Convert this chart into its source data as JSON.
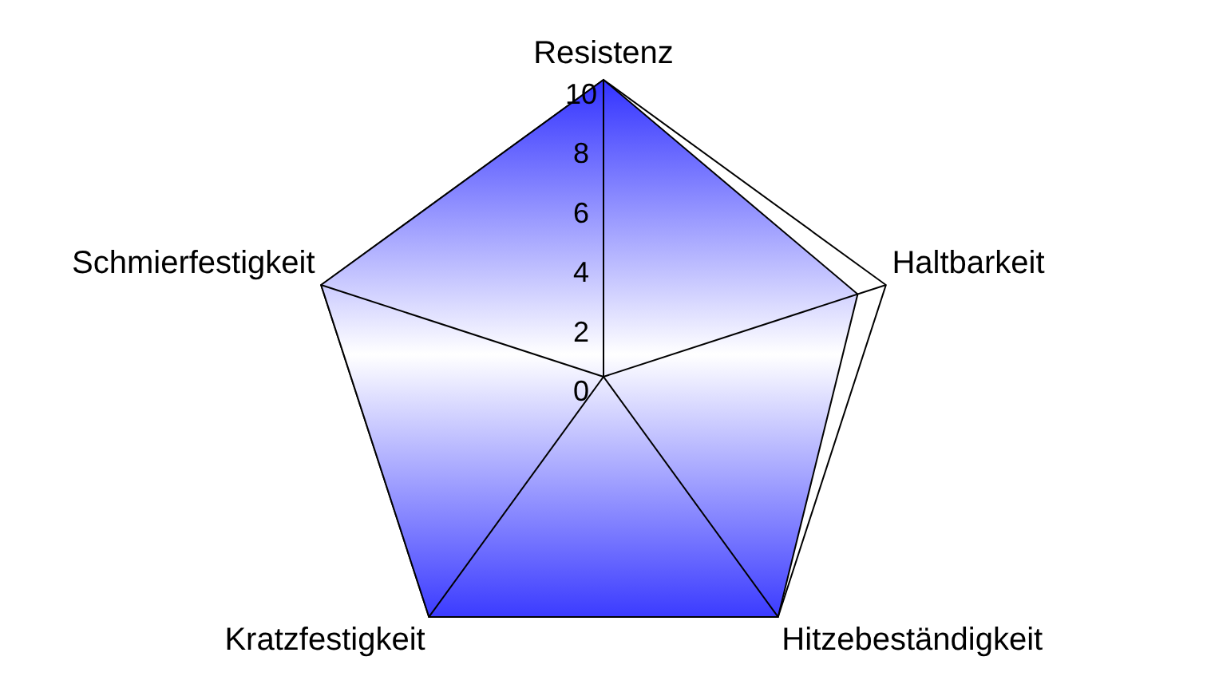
{
  "chart_data": {
    "type": "radar",
    "categories": [
      "Resistenz",
      "Haltbarkeit",
      "Hitzebeständigkeit",
      "Kratzfestigkeit",
      "Schmierfestigkeit"
    ],
    "series": [
      {
        "color": "#0000ff",
        "values": [
          10,
          9,
          10,
          10,
          10
        ]
      }
    ],
    "ylim": [
      0,
      10
    ],
    "yticks": [
      0,
      2,
      4,
      6,
      8,
      10
    ],
    "legend": false,
    "marker": "none"
  }
}
